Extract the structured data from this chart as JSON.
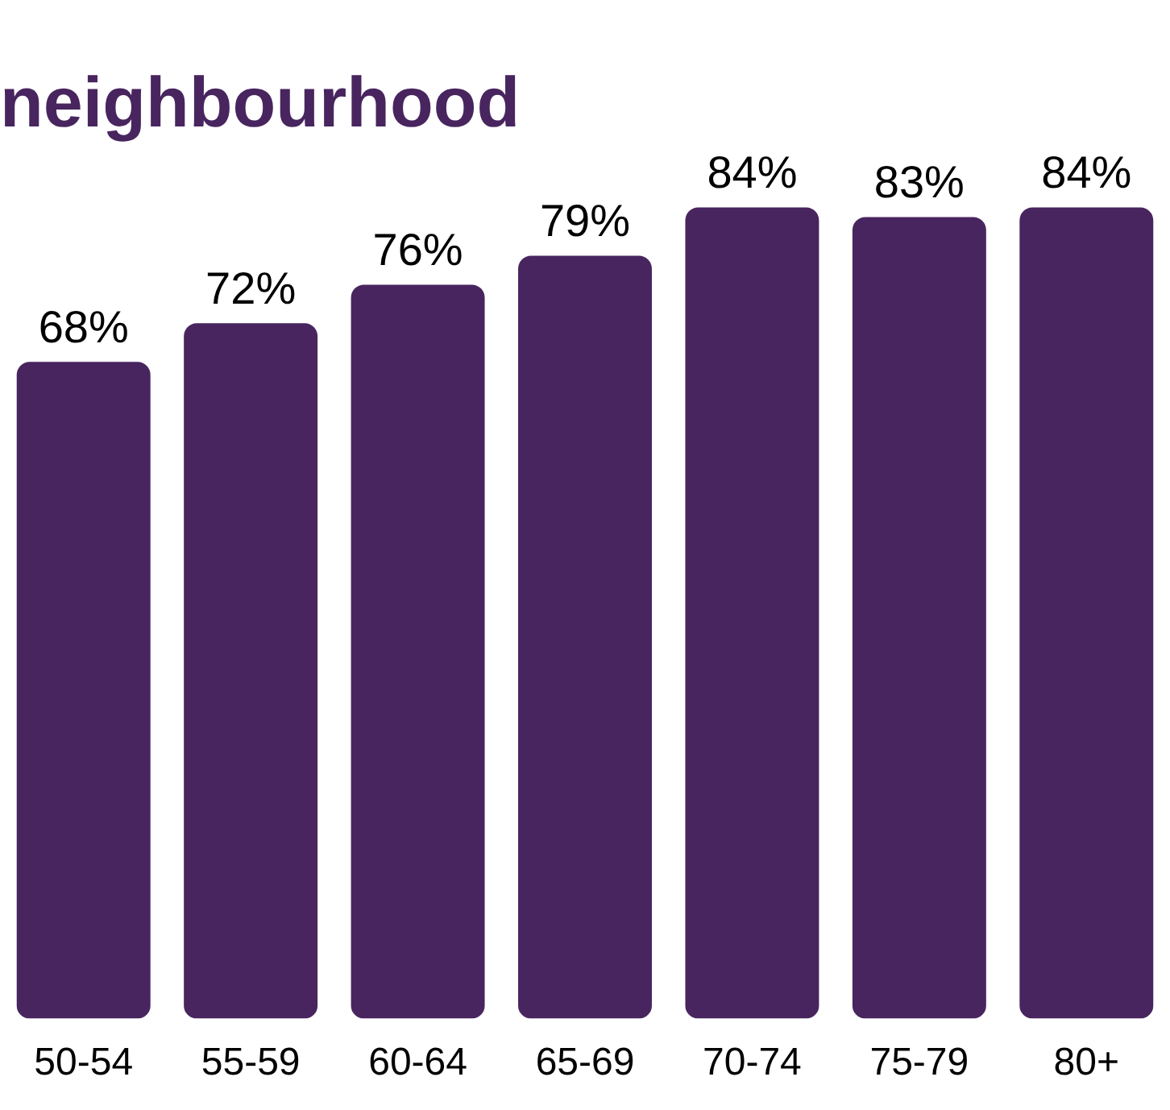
{
  "chart_data": {
    "type": "bar",
    "title": "neighbourhood",
    "categories": [
      "50-54",
      "55-59",
      "60-64",
      "65-69",
      "70-74",
      "75-79",
      "80+"
    ],
    "values": [
      68,
      72,
      76,
      79,
      84,
      83,
      84
    ],
    "value_labels": [
      "68%",
      "72%",
      "76%",
      "79%",
      "84%",
      "83%",
      "84%"
    ],
    "color": "#48255f",
    "grid": false,
    "legend": false
  }
}
